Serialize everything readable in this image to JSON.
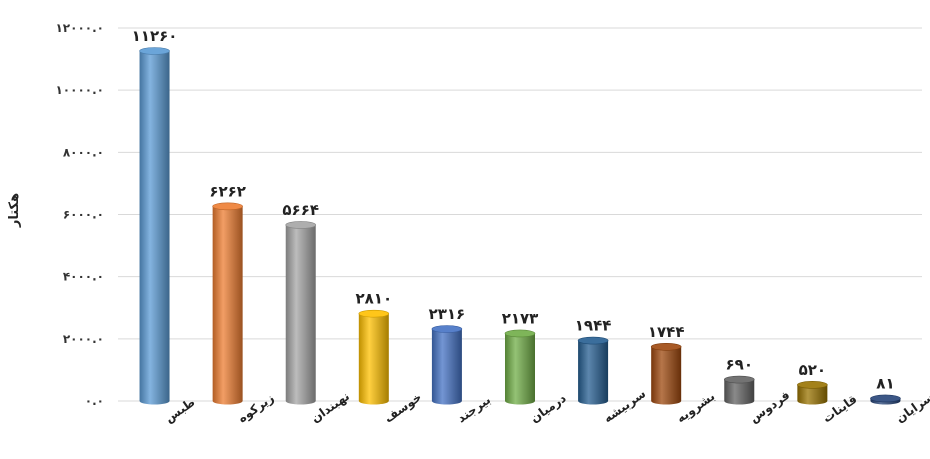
{
  "chart_data": {
    "type": "bar",
    "style": "3d-cylinder",
    "ylabel": "هکتار",
    "ylim": [
      0,
      12000
    ],
    "yticks": [
      0,
      2000,
      4000,
      6000,
      8000,
      10000,
      12000
    ],
    "ytick_labels": [
      "۰.۰",
      "۲۰۰۰.۰",
      "۴۰۰۰.۰",
      "۶۰۰۰.۰",
      "۸۰۰۰.۰",
      "۱۰۰۰۰.۰",
      "۱۲۰۰۰.۰"
    ],
    "grid": true,
    "categories": [
      "طبس",
      "زیرکوه",
      "نهبندان",
      "خوسف",
      "بیرجند",
      "درمیان",
      "سربیشه",
      "بشرویه",
      "فردوس",
      "قاینات",
      "سرایان"
    ],
    "values": [
      11260,
      6262,
      5664,
      2810,
      2316,
      2173,
      1944,
      1744,
      690,
      520,
      81
    ],
    "data_labels": [
      "۱۱۲۶۰",
      "۶۲۶۲",
      "۵۶۶۴",
      "۲۸۱۰",
      "۲۳۱۶",
      "۲۱۷۳",
      "۱۹۴۴",
      "۱۷۴۴",
      "۶۹۰",
      "۵۲۰",
      "۸۱"
    ],
    "colors": [
      "#5B9BD5",
      "#ED7D31",
      "#A5A5A5",
      "#FFC000",
      "#4472C4",
      "#70AD47",
      "#255E91",
      "#9E480E",
      "#636363",
      "#997300",
      "#264478"
    ]
  }
}
